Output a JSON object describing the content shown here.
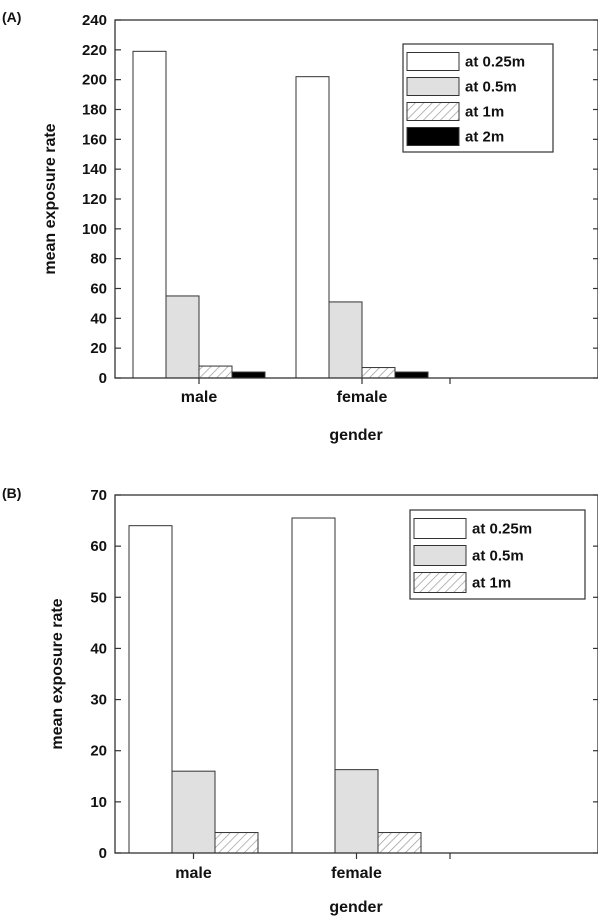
{
  "chart_data": [
    {
      "type": "bar",
      "panel_label": "(A)",
      "categories": [
        "male",
        "female"
      ],
      "series": [
        {
          "name": "at 0.25m",
          "values": [
            219,
            202
          ]
        },
        {
          "name": "at 0.5m",
          "values": [
            55,
            51
          ]
        },
        {
          "name": "at 1m",
          "values": [
            8,
            7
          ]
        },
        {
          "name": "at 2m",
          "values": [
            4,
            4
          ]
        }
      ],
      "xlabel": "gender",
      "ylabel": "mean exposure rate",
      "ylim": [
        0,
        240
      ],
      "yticks": [
        0,
        20,
        40,
        60,
        80,
        100,
        120,
        140,
        160,
        180,
        200,
        220,
        240
      ],
      "legend_position": "top-right",
      "grid": false
    },
    {
      "type": "bar",
      "panel_label": "(B)",
      "categories": [
        "male",
        "female"
      ],
      "series": [
        {
          "name": "at 0.25m",
          "values": [
            64,
            65.5
          ]
        },
        {
          "name": "at 0.5m",
          "values": [
            16,
            16.3
          ]
        },
        {
          "name": "at 1m",
          "values": [
            4,
            4
          ]
        }
      ],
      "xlabel": "gender",
      "ylabel": "mean exposure rate",
      "ylim": [
        0,
        70
      ],
      "yticks": [
        0,
        10,
        20,
        30,
        40,
        50,
        60,
        70
      ],
      "legend_position": "top-right",
      "grid": false
    }
  ],
  "styles": {
    "series_fills": [
      "#ffffff",
      "#e0e0e0",
      "hatch",
      "#000000"
    ],
    "stroke": "#333333"
  }
}
